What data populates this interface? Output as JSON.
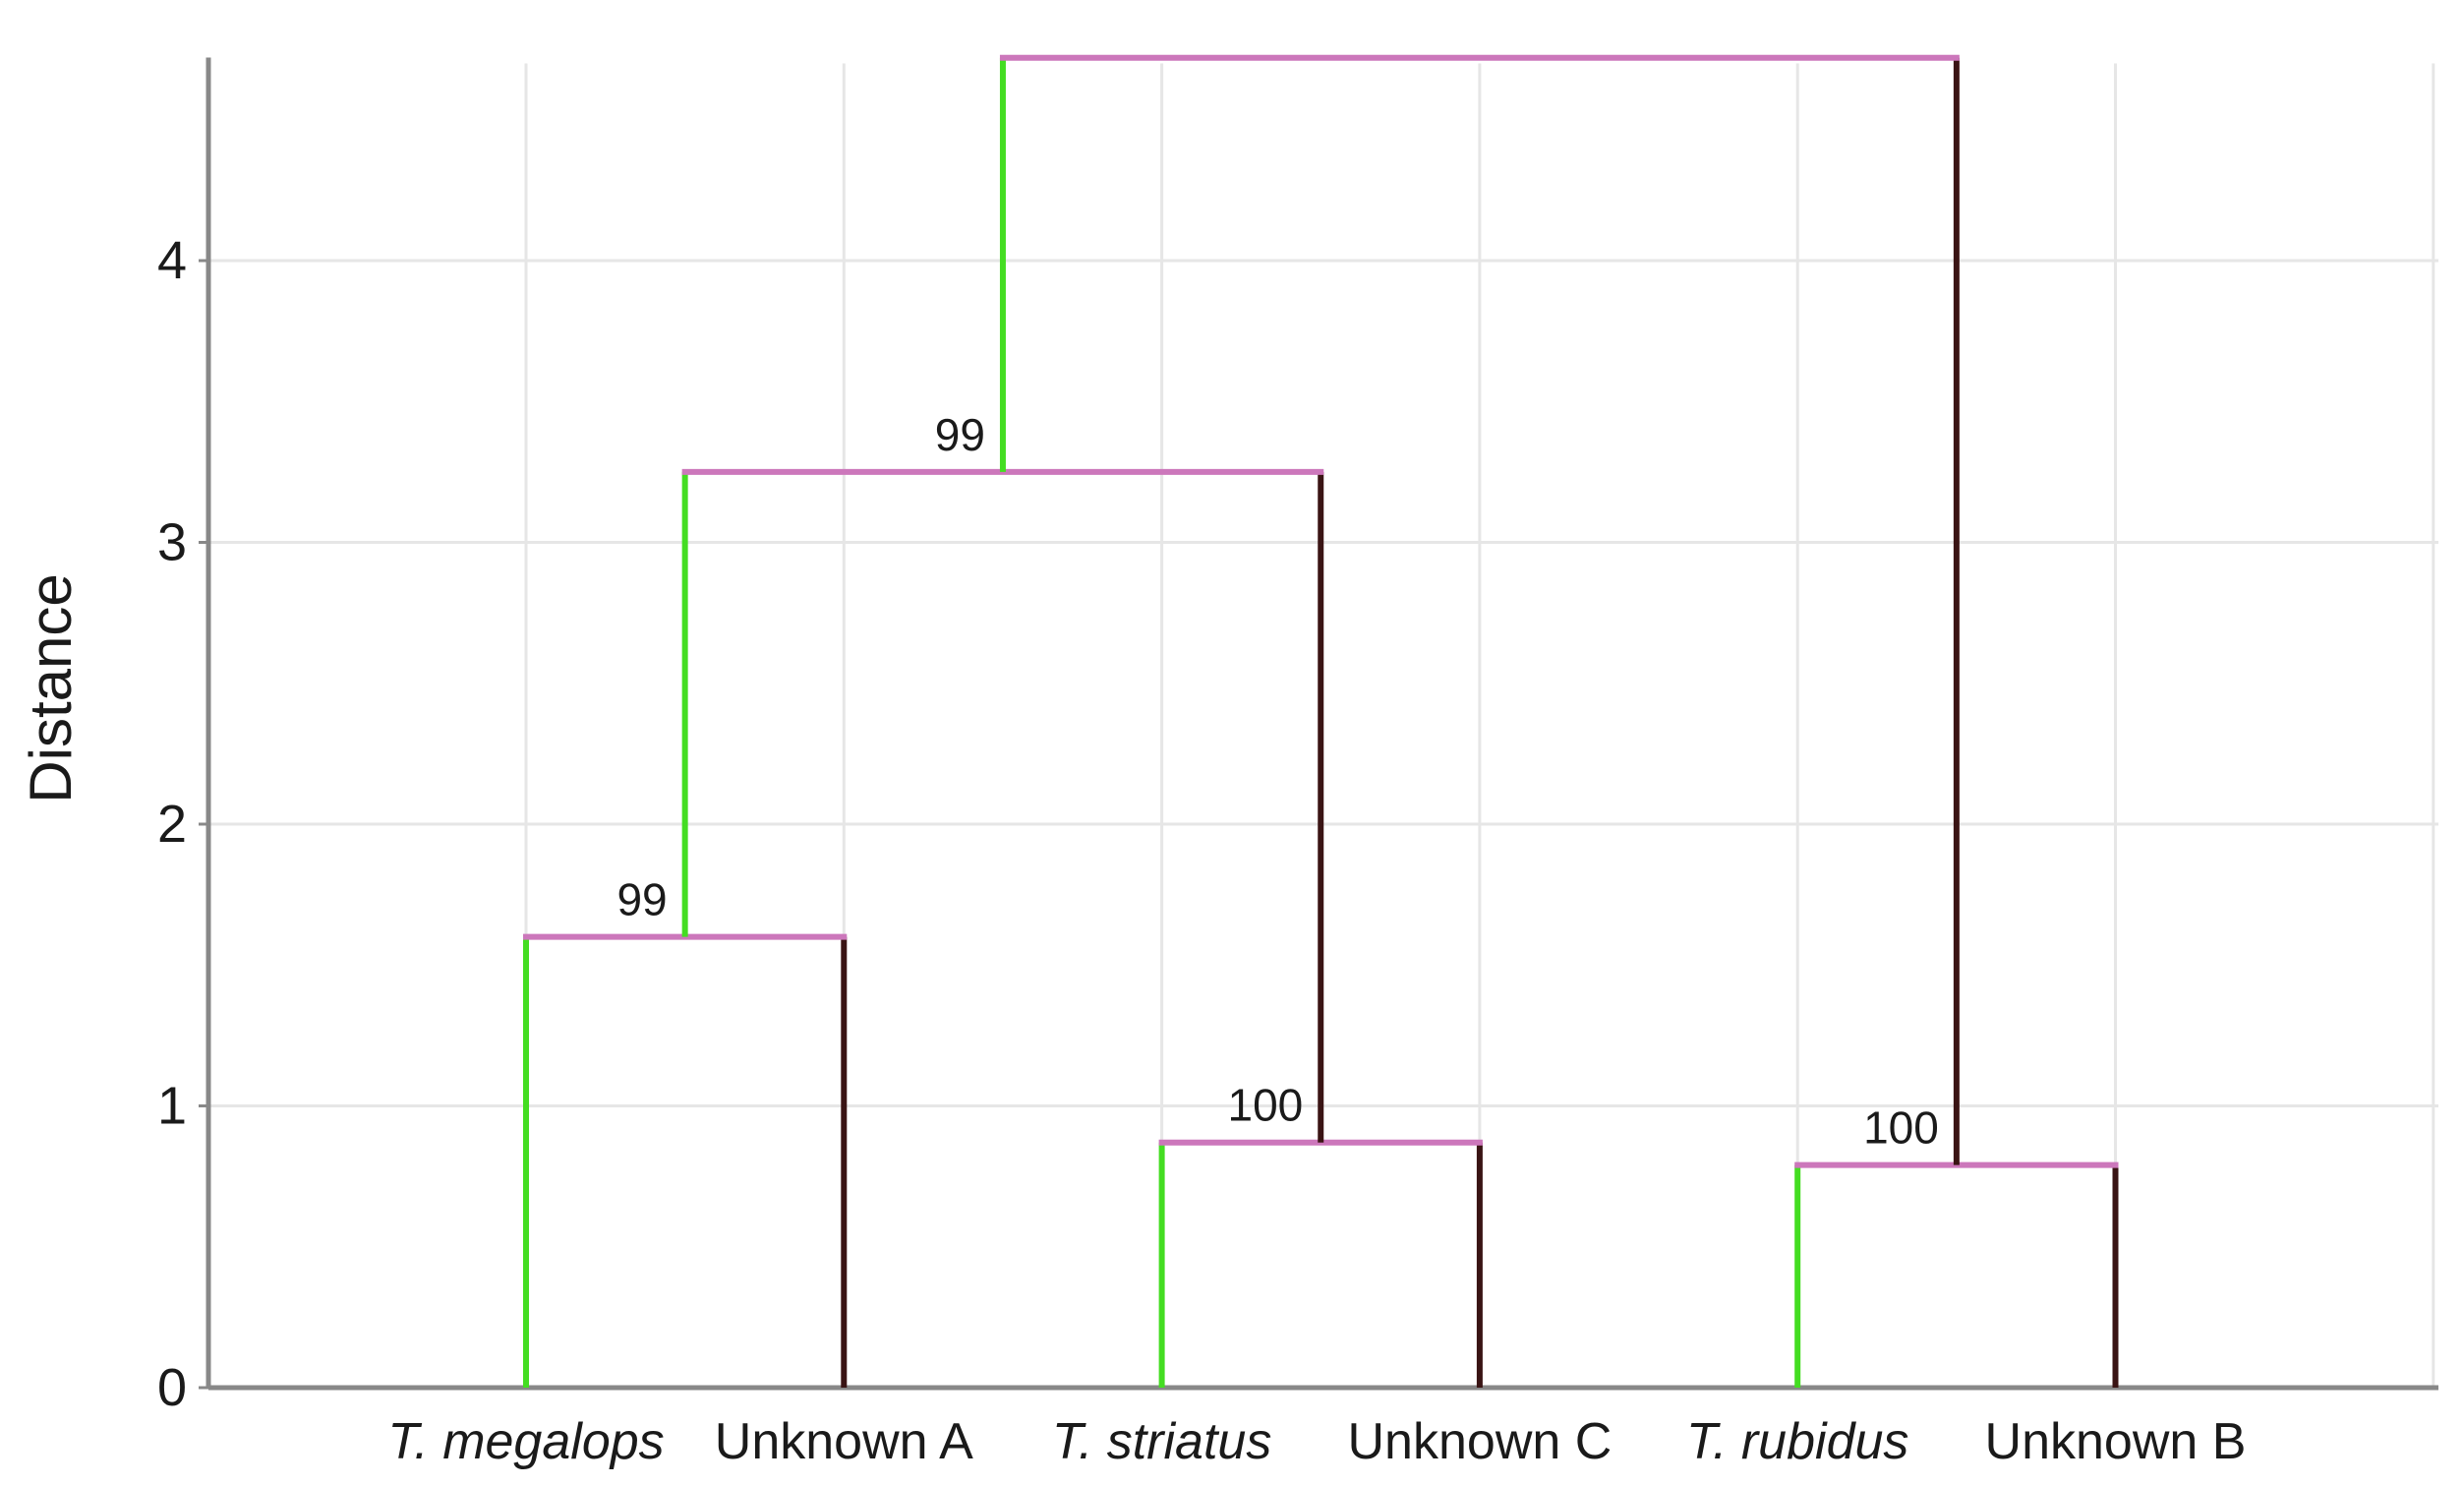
{
  "chart_data": {
    "type": "dendrogram",
    "ylabel": "Distance",
    "xlabel": "",
    "ylim": [
      0,
      4.7
    ],
    "yticks": [
      0,
      1,
      2,
      3,
      4
    ],
    "grid": true,
    "leaves": [
      {
        "label": "T. megalops",
        "italic": true
      },
      {
        "label": "Unknown A",
        "italic": false
      },
      {
        "label": "T. striatus",
        "italic": true
      },
      {
        "label": "Unknown C",
        "italic": false
      },
      {
        "label": "T. rubidus",
        "italic": true
      },
      {
        "label": "Unknown B",
        "italic": false
      }
    ],
    "clades": [
      {
        "id": "A",
        "left": 0,
        "right": 1,
        "height": 1.6,
        "support": "99"
      },
      {
        "id": "C",
        "left": 2,
        "right": 3,
        "height": 0.87,
        "support": "100"
      },
      {
        "id": "B",
        "left": 4,
        "right": 5,
        "height": 0.79,
        "support": "100"
      },
      {
        "id": "AC",
        "left": "A",
        "right": "C",
        "height": 3.25,
        "support": "99"
      },
      {
        "id": "root",
        "left": "AC",
        "right": "B",
        "height": 4.72,
        "support": ""
      }
    ],
    "colors": {
      "left_branch": "#44dd22",
      "right_branch": "#3a1414",
      "join": "#cc77bb",
      "grid": "#e6e6e6",
      "axis": "#888888"
    }
  }
}
